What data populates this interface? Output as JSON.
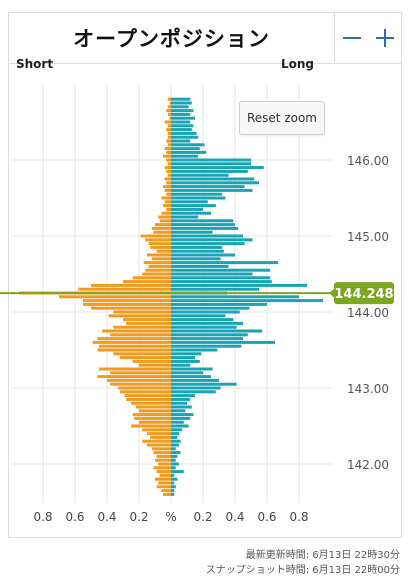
{
  "title": "オープンポジション",
  "short_label": "Short",
  "long_label": "Long",
  "reset_zoom_label": "Reset zoom",
  "footer": {
    "updated": "最新更新時間: 6月13日 22時30分",
    "snapshot": "スナップショット時間: 6月13日 22時00分"
  },
  "colors": {
    "long": "#1aa3b5",
    "short": "#f39a1e",
    "current": "#7ba620"
  },
  "chart_data": {
    "type": "bar",
    "orientation": "horizontal",
    "xlabel": "%",
    "x_ticks": [
      "0.8",
      "0.6",
      "0.4",
      "0.2",
      "%",
      "0.2",
      "0.4",
      "0.6",
      "0.8"
    ],
    "xlim": [
      -1.0,
      1.0
    ],
    "ylim": [
      141.55,
      146.85
    ],
    "y_ticks": [
      "142.00",
      "143.00",
      "144.00",
      "145.00",
      "146.00"
    ],
    "current_price": "144.248",
    "rows": [
      [
        146.8,
        0.02,
        0.12
      ],
      [
        146.75,
        0.01,
        0.13
      ],
      [
        146.7,
        0.02,
        0.11
      ],
      [
        146.65,
        0.03,
        0.14
      ],
      [
        146.6,
        0.02,
        0.12
      ],
      [
        146.55,
        0.01,
        0.15
      ],
      [
        146.5,
        0.04,
        0.12
      ],
      [
        146.45,
        0.02,
        0.14
      ],
      [
        146.4,
        0.03,
        0.13
      ],
      [
        146.35,
        0.02,
        0.16
      ],
      [
        146.3,
        0.02,
        0.17
      ],
      [
        146.25,
        0.03,
        0.12
      ],
      [
        146.2,
        0.02,
        0.21
      ],
      [
        146.15,
        0.04,
        0.18
      ],
      [
        146.1,
        0.03,
        0.22
      ],
      [
        146.05,
        0.05,
        0.17
      ],
      [
        146.0,
        0.03,
        0.5
      ],
      [
        145.95,
        0.02,
        0.5
      ],
      [
        145.9,
        0.04,
        0.58
      ],
      [
        145.85,
        0.03,
        0.48
      ],
      [
        145.8,
        0.02,
        0.36
      ],
      [
        145.75,
        0.04,
        0.52
      ],
      [
        145.7,
        0.03,
        0.55
      ],
      [
        145.65,
        0.05,
        0.46
      ],
      [
        145.6,
        0.04,
        0.51
      ],
      [
        145.55,
        0.03,
        0.32
      ],
      [
        145.5,
        0.06,
        0.34
      ],
      [
        145.45,
        0.04,
        0.23
      ],
      [
        145.4,
        0.05,
        0.28
      ],
      [
        145.35,
        0.03,
        0.2
      ],
      [
        145.3,
        0.06,
        0.25
      ],
      [
        145.25,
        0.08,
        0.17
      ],
      [
        145.2,
        0.07,
        0.39
      ],
      [
        145.15,
        0.1,
        0.4
      ],
      [
        145.1,
        0.12,
        0.42
      ],
      [
        145.05,
        0.11,
        0.26
      ],
      [
        145.0,
        0.19,
        0.45
      ],
      [
        144.95,
        0.16,
        0.51
      ],
      [
        144.9,
        0.14,
        0.46
      ],
      [
        144.85,
        0.13,
        0.32
      ],
      [
        144.8,
        0.09,
        0.33
      ],
      [
        144.75,
        0.15,
        0.4
      ],
      [
        144.7,
        0.12,
        0.31
      ],
      [
        144.65,
        0.17,
        0.67
      ],
      [
        144.6,
        0.14,
        0.36
      ],
      [
        144.55,
        0.16,
        0.62
      ],
      [
        144.5,
        0.18,
        0.51
      ],
      [
        144.45,
        0.24,
        0.62
      ],
      [
        144.4,
        0.3,
        0.63
      ],
      [
        144.35,
        0.5,
        0.85
      ],
      [
        144.3,
        0.58,
        0.55
      ],
      [
        144.25,
        0.95,
        0.35
      ],
      [
        144.2,
        0.7,
        0.8
      ],
      [
        144.15,
        0.55,
        0.95
      ],
      [
        144.1,
        0.55,
        0.6
      ],
      [
        144.05,
        0.5,
        0.49
      ],
      [
        144.0,
        0.36,
        0.43
      ],
      [
        143.95,
        0.39,
        0.34
      ],
      [
        143.9,
        0.3,
        0.39
      ],
      [
        143.85,
        0.28,
        0.45
      ],
      [
        143.8,
        0.36,
        0.41
      ],
      [
        143.75,
        0.43,
        0.57
      ],
      [
        143.7,
        0.38,
        0.48
      ],
      [
        143.65,
        0.46,
        0.45
      ],
      [
        143.6,
        0.49,
        0.65
      ],
      [
        143.55,
        0.45,
        0.44
      ],
      [
        143.5,
        0.46,
        0.29
      ],
      [
        143.45,
        0.36,
        0.19
      ],
      [
        143.4,
        0.32,
        0.15
      ],
      [
        143.35,
        0.24,
        0.18
      ],
      [
        143.3,
        0.2,
        0.12
      ],
      [
        143.25,
        0.45,
        0.26
      ],
      [
        143.2,
        0.38,
        0.2
      ],
      [
        143.15,
        0.46,
        0.25
      ],
      [
        143.1,
        0.4,
        0.3
      ],
      [
        143.05,
        0.38,
        0.41
      ],
      [
        143.0,
        0.33,
        0.31
      ],
      [
        142.95,
        0.32,
        0.28
      ],
      [
        142.9,
        0.29,
        0.15
      ],
      [
        142.85,
        0.28,
        0.12
      ],
      [
        142.8,
        0.25,
        0.1
      ],
      [
        142.75,
        0.22,
        0.13
      ],
      [
        142.7,
        0.2,
        0.09
      ],
      [
        142.65,
        0.24,
        0.14
      ],
      [
        142.6,
        0.23,
        0.12
      ],
      [
        142.55,
        0.2,
        0.08
      ],
      [
        142.5,
        0.25,
        0.11
      ],
      [
        142.45,
        0.18,
        0.07
      ],
      [
        142.4,
        0.15,
        0.05
      ],
      [
        142.35,
        0.13,
        0.04
      ],
      [
        142.3,
        0.18,
        0.06
      ],
      [
        142.25,
        0.15,
        0.05
      ],
      [
        142.2,
        0.12,
        0.03
      ],
      [
        142.15,
        0.11,
        0.06
      ],
      [
        142.1,
        0.09,
        0.04
      ],
      [
        142.05,
        0.1,
        0.03
      ],
      [
        142.0,
        0.08,
        0.05
      ],
      [
        141.95,
        0.11,
        0.03
      ],
      [
        141.9,
        0.09,
        0.08
      ],
      [
        141.85,
        0.07,
        0.02
      ],
      [
        141.8,
        0.1,
        0.04
      ],
      [
        141.75,
        0.08,
        0.02
      ],
      [
        141.7,
        0.09,
        0.03
      ],
      [
        141.65,
        0.06,
        0.02
      ],
      [
        141.6,
        0.05,
        0.02
      ]
    ]
  }
}
